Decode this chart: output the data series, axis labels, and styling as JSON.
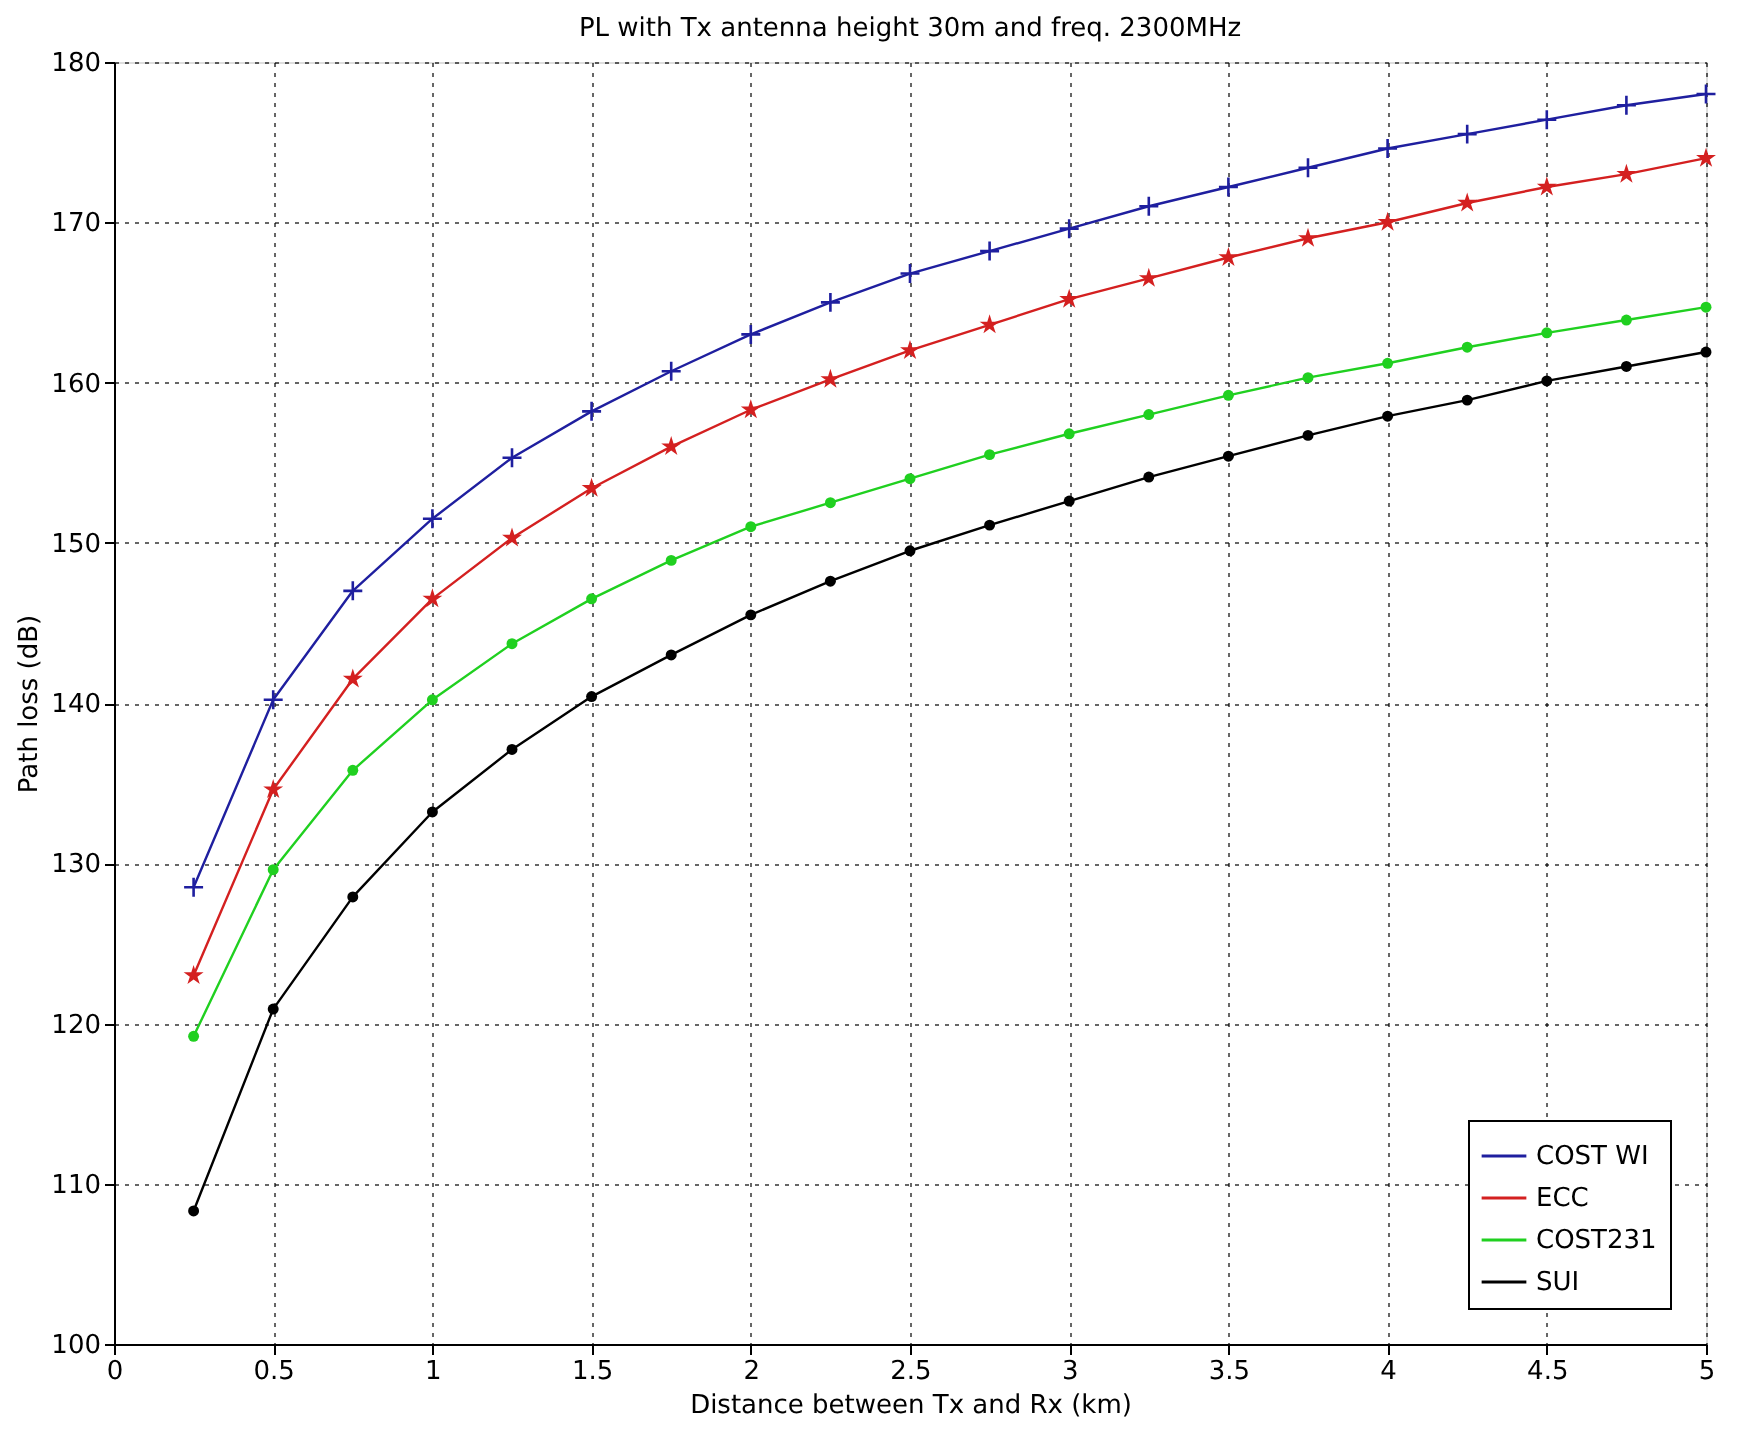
{
  "chart_data": {
    "type": "line",
    "title": "PL with Tx antenna height 30m and freq. 2300MHz",
    "xlabel": "Distance between Tx and Rx (km)",
    "ylabel": "Path loss (dB)",
    "x": [
      0.25,
      0.5,
      0.75,
      1,
      1.25,
      1.5,
      1.75,
      2,
      2.25,
      2.5,
      2.75,
      3,
      3.25,
      3.5,
      3.75,
      4,
      4.25,
      4.5,
      4.75,
      5
    ],
    "series": [
      {
        "name": "COST WI",
        "color": "#1f1f9f",
        "marker": "cross",
        "values": [
          128.5,
          140.2,
          147,
          151.5,
          155.3,
          158.2,
          160.7,
          163,
          165,
          166.8,
          168.2,
          169.6,
          171,
          172.2,
          173.4,
          174.6,
          175.5,
          176.4,
          177.3,
          178
        ]
      },
      {
        "name": "ECC",
        "color": "#d42020",
        "marker": "star",
        "values": [
          123,
          134.6,
          141.5,
          146.5,
          150.3,
          153.4,
          156,
          158.3,
          160.2,
          162,
          163.6,
          165.2,
          166.5,
          167.8,
          169,
          170,
          171.2,
          172.2,
          173,
          174
        ]
      },
      {
        "name": "COST231",
        "color": "#20d020",
        "marker": "circle",
        "values": [
          119.2,
          129.6,
          135.8,
          140.2,
          143.7,
          146.5,
          148.9,
          151,
          152.5,
          154,
          155.5,
          156.8,
          158,
          159.2,
          160.3,
          161.2,
          162.2,
          163.1,
          163.9,
          164.7
        ]
      },
      {
        "name": "SUI",
        "color": "#000000",
        "marker": "circle",
        "values": [
          108.3,
          120.9,
          127.9,
          133.2,
          137.1,
          140.4,
          143,
          145.5,
          147.6,
          149.5,
          151.1,
          152.6,
          154.1,
          155.4,
          156.7,
          157.9,
          158.9,
          160.1,
          161,
          161.9
        ]
      }
    ],
    "xlim": [
      0,
      5
    ],
    "xticks": [
      0,
      0.5,
      1,
      1.5,
      2,
      2.5,
      3,
      3.5,
      4,
      4.5,
      5
    ],
    "ylim": [
      100,
      180
    ],
    "yticks": [
      100,
      110,
      120,
      130,
      140,
      150,
      160,
      170,
      180
    ],
    "grid": true,
    "legend": "bottom right",
    "line_style": "solid"
  }
}
